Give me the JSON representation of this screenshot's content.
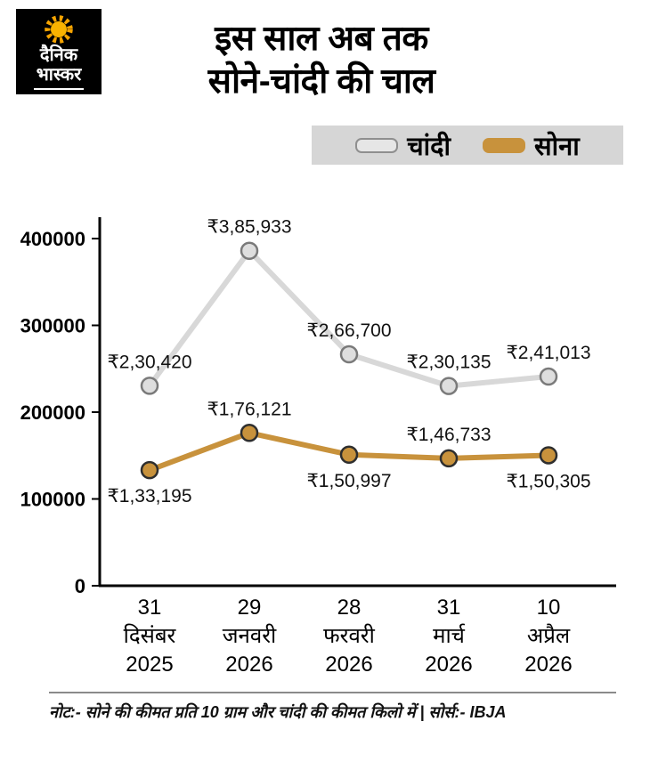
{
  "logo": {
    "brand_line1": "दैनिक",
    "brand_line2": "भास्कर",
    "sun_color": "#f6a400",
    "bg_color": "#000000"
  },
  "header": {
    "title_line1": "इस साल अब तक",
    "title_line2": "सोने-चांदी की चाल"
  },
  "legend": {
    "background": "#d6d6d6",
    "items": [
      {
        "label": "चांदी",
        "color": "#e6e6e6",
        "border": "#8f8f8f"
      },
      {
        "label": "सोना",
        "color": "#c8923c",
        "border": "#c8923c"
      }
    ]
  },
  "chart_data": {
    "type": "line",
    "title": "इस साल अब तक सोने-चांदी की चाल",
    "ylabel": "",
    "xlabel": "",
    "ylim": [
      0,
      400000
    ],
    "yticks": [
      0,
      100000,
      200000,
      300000,
      400000
    ],
    "grid": false,
    "legend_position": "top-right",
    "categories": [
      {
        "day": "31",
        "month": "दिसंबर",
        "year": "2025"
      },
      {
        "day": "29",
        "month": "जनवरी",
        "year": "2026"
      },
      {
        "day": "28",
        "month": "फरवरी",
        "year": "2026"
      },
      {
        "day": "31",
        "month": "मार्च",
        "year": "2026"
      },
      {
        "day": "10",
        "month": "अप्रैल",
        "year": "2026"
      }
    ],
    "series": [
      {
        "name": "चांदी",
        "color": "#d8d8d8",
        "marker_fill": "#dedede",
        "marker_stroke": "#7a7a7a",
        "values": [
          230420,
          385933,
          266700,
          230135,
          241013
        ],
        "labels": [
          "₹2,30,420",
          "₹3,85,933",
          "₹2,66,700",
          "₹2,30,135",
          "₹2,41,013"
        ],
        "label_pos": [
          "above",
          "above",
          "above",
          "above",
          "above"
        ]
      },
      {
        "name": "सोना",
        "color": "#c8923c",
        "marker_fill": "#c8923c",
        "marker_stroke": "#2e2e2e",
        "values": [
          133195,
          176121,
          150997,
          146733,
          150305
        ],
        "labels": [
          "₹1,33,195",
          "₹1,76,121",
          "₹1,50,997",
          "₹1,46,733",
          "₹1,50,305"
        ],
        "label_pos": [
          "below",
          "above",
          "below",
          "above",
          "below"
        ]
      }
    ]
  },
  "footer": {
    "note": "नोट:- सोने की कीमत प्रति 10 ग्राम और चांदी की कीमत किलो में | सोर्स:- IBJA"
  }
}
